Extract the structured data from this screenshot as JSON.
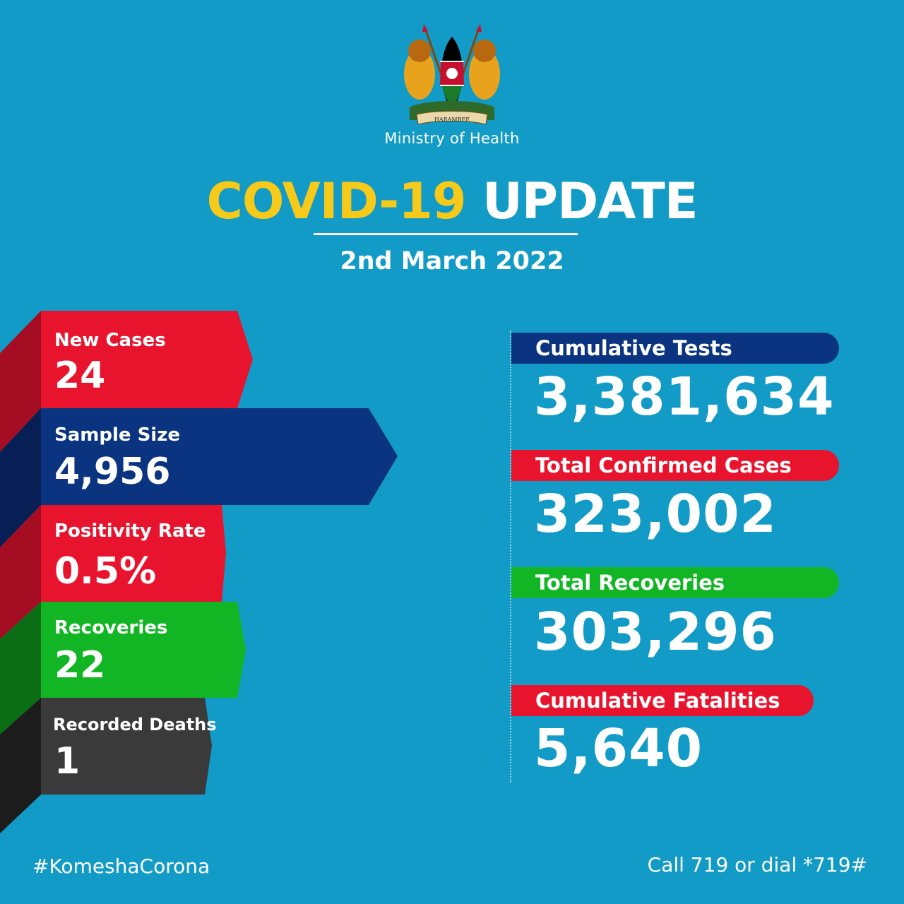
{
  "header": {
    "ministry": "Ministry of Health",
    "emblem_motto": "HARAMBEE",
    "title_highlight": "COVID-19",
    "title_rest": "UPDATE",
    "date": "2nd March 2022"
  },
  "daily_stats": [
    {
      "label": "New Cases",
      "value": "24",
      "color": "#e8142d"
    },
    {
      "label": "Sample Size",
      "value": "4,956",
      "color": "#0a3480"
    },
    {
      "label": "Positivity Rate",
      "value": "0.5%",
      "color": "#e8142d"
    },
    {
      "label": "Recoveries",
      "value": "22",
      "color": "#12b524"
    },
    {
      "label": "Recorded Deaths",
      "value": "1",
      "color": "#333333"
    }
  ],
  "cumulative_stats": [
    {
      "label": "Cumulative Tests",
      "value": "3,381,634",
      "color": "#0a3480"
    },
    {
      "label": "Total Confirmed Cases",
      "value": "323,002",
      "color": "#e8142d"
    },
    {
      "label": "Total Recoveries",
      "value": "303,296",
      "color": "#12b524"
    },
    {
      "label": "Cumulative Fatalities",
      "value": "5,640",
      "color": "#e8142d"
    }
  ],
  "footer": {
    "hashtag": "#KomeshaCorona",
    "call": "Call 719 or dial *719#"
  },
  "colors": {
    "background": "#129bc7",
    "title_accent": "#f7c919"
  }
}
